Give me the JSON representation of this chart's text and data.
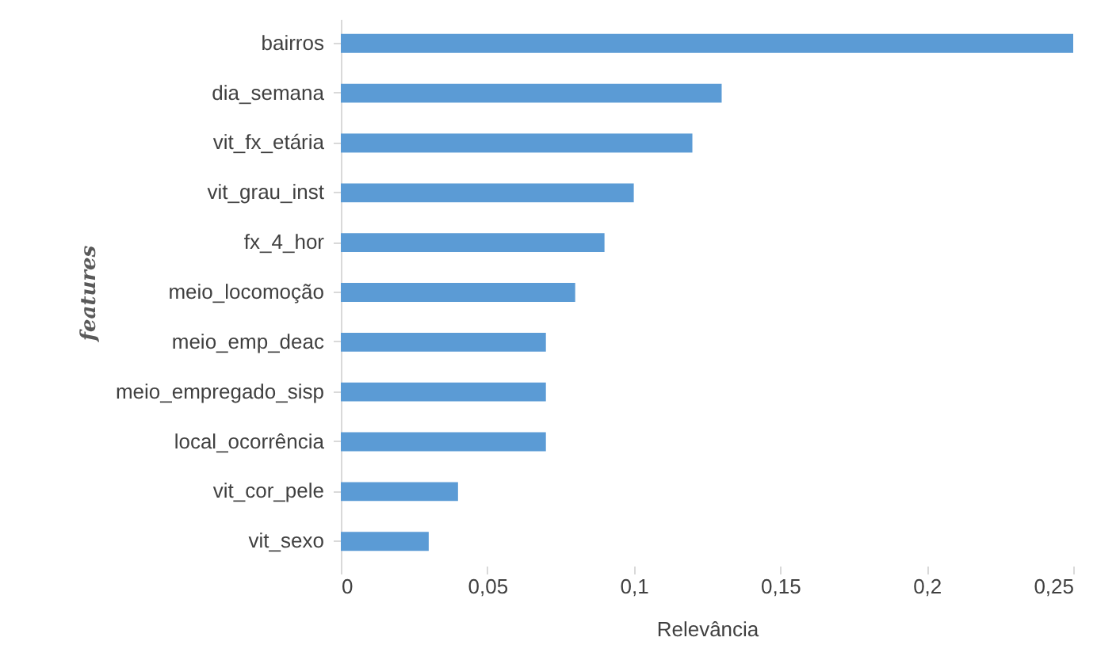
{
  "chart_data": {
    "type": "bar",
    "orientation": "horizontal",
    "xlabel": "Relevância",
    "ylabel": "features",
    "categories": [
      "bairros",
      "dia_semana",
      "vit_fx_etária",
      "vit_grau_inst",
      "fx_4_hor",
      "meio_locomoção",
      "meio_emp_deac",
      "meio_empregado_sisp",
      "local_ocorrência",
      "vit_cor_pele",
      "vit_sexo"
    ],
    "values": [
      0.25,
      0.13,
      0.12,
      0.1,
      0.09,
      0.08,
      0.07,
      0.07,
      0.07,
      0.04,
      0.03
    ],
    "color": "#5b9bd5",
    "xlim": [
      0,
      0.25
    ],
    "xticks": [
      0,
      {
        "value": 0.05,
        "label": "0,05"
      },
      {
        "value": 0.1,
        "label": "0,1"
      },
      {
        "value": 0.15,
        "label": "0,15"
      },
      {
        "value": 0.2,
        "label": "0,2"
      },
      {
        "value": 0.25,
        "label": "0,25"
      }
    ],
    "grid": false
  }
}
